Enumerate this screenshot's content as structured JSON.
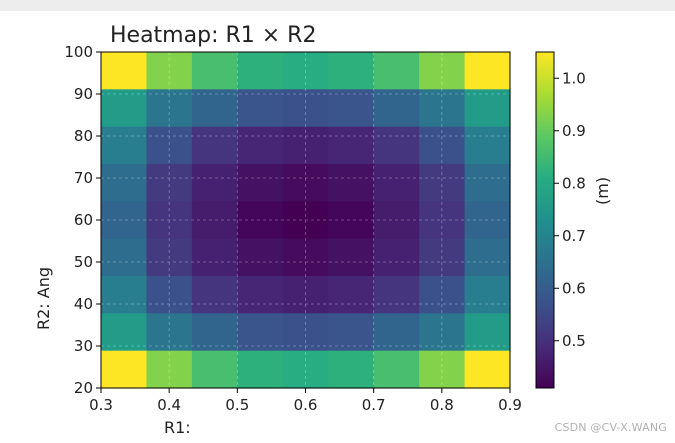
{
  "chart_data": {
    "type": "heatmap",
    "title": "Heatmap: R1 × R2",
    "xlabel": "R1:",
    "ylabel": "R2: Ang",
    "colorbar_label": "(m)",
    "colormap": "viridis",
    "xlim": [
      0.3,
      0.9
    ],
    "ylim": [
      20,
      100
    ],
    "x_ticks": [
      "0.3",
      "0.4",
      "0.5",
      "0.6",
      "0.7",
      "0.8",
      "0.9"
    ],
    "y_ticks": [
      "20",
      "30",
      "40",
      "50",
      "60",
      "70",
      "80",
      "90",
      "100"
    ],
    "x_centers": [
      0.333,
      0.4,
      0.467,
      0.533,
      0.6,
      0.667,
      0.733,
      0.8,
      0.867
    ],
    "y_centers": [
      95.6,
      86.7,
      77.8,
      68.9,
      60.0,
      51.1,
      42.2,
      33.3,
      24.4
    ],
    "values": [
      [
        1.05,
        0.93,
        0.86,
        0.82,
        0.81,
        0.82,
        0.86,
        0.93,
        1.05
      ],
      [
        0.76,
        0.66,
        0.62,
        0.58,
        0.57,
        0.58,
        0.62,
        0.66,
        0.76
      ],
      [
        0.68,
        0.57,
        0.51,
        0.48,
        0.47,
        0.48,
        0.51,
        0.57,
        0.68
      ],
      [
        0.64,
        0.52,
        0.47,
        0.44,
        0.43,
        0.44,
        0.47,
        0.52,
        0.64
      ],
      [
        0.62,
        0.51,
        0.46,
        0.42,
        0.41,
        0.42,
        0.46,
        0.51,
        0.62
      ],
      [
        0.64,
        0.52,
        0.47,
        0.44,
        0.43,
        0.44,
        0.47,
        0.52,
        0.64
      ],
      [
        0.68,
        0.57,
        0.51,
        0.48,
        0.47,
        0.48,
        0.51,
        0.57,
        0.68
      ],
      [
        0.76,
        0.66,
        0.62,
        0.58,
        0.57,
        0.58,
        0.62,
        0.66,
        0.76
      ],
      [
        1.05,
        0.93,
        0.86,
        0.82,
        0.81,
        0.82,
        0.86,
        0.93,
        1.05
      ]
    ],
    "colorbar_range": [
      0.41,
      1.05
    ],
    "colorbar_ticks": [
      "0.5",
      "0.6",
      "0.7",
      "0.8",
      "0.9",
      "1.0"
    ],
    "grid": true
  },
  "watermark": "CSDN @CV-X.WANG"
}
